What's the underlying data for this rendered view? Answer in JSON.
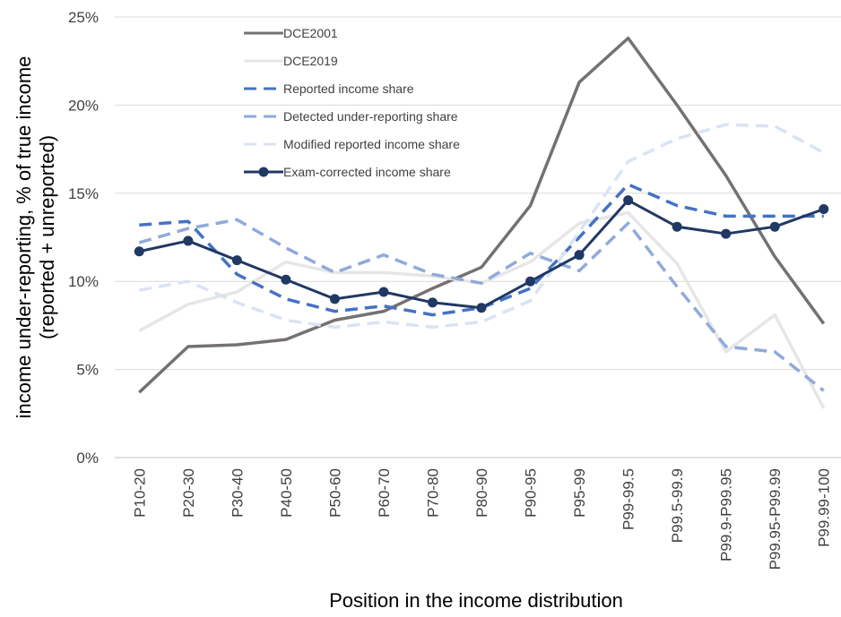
{
  "chart_data": {
    "type": "line",
    "y_label": "income under-reporting, % of true income (reported + unreported)",
    "x_label": "Position in the income distribution",
    "categories": [
      "P10-20",
      "P20-30",
      "P30-40",
      "P40-50",
      "P50-60",
      "P60-70",
      "P70-80",
      "P80-90",
      "P90-95",
      "P95-99",
      "P99-99.5",
      "P99.5-99.9",
      "P99.9-P99.95",
      "P99.95-P99.99",
      "P99.99-100"
    ],
    "series": [
      {
        "name": "DCE2001",
        "color": "#767171",
        "dashed": false,
        "marker": false,
        "values": [
          3.7,
          6.3,
          6.4,
          6.7,
          7.8,
          8.3,
          9.6,
          10.8,
          14.3,
          21.3,
          23.8,
          20.0,
          16.0,
          11.4,
          7.6
        ]
      },
      {
        "name": "DCE2019",
        "color": "#e7e6e6",
        "dashed": false,
        "marker": false,
        "values": [
          7.2,
          8.7,
          9.4,
          11.1,
          10.5,
          10.5,
          10.3,
          9.9,
          11.1,
          13.3,
          13.9,
          11.0,
          6.0,
          8.1,
          2.8
        ]
      },
      {
        "name": "Reported income share",
        "color": "#4472c4",
        "dashed": true,
        "marker": false,
        "values": [
          13.2,
          13.4,
          10.4,
          9.0,
          8.3,
          8.6,
          8.1,
          8.5,
          9.6,
          12.5,
          15.5,
          14.3,
          13.7,
          13.7,
          13.7
        ]
      },
      {
        "name": "Detected under-reporting share",
        "color": "#8faadc",
        "dashed": true,
        "marker": false,
        "values": [
          12.2,
          13.0,
          13.5,
          11.9,
          10.5,
          11.5,
          10.4,
          9.9,
          11.6,
          10.6,
          13.3,
          9.7,
          6.3,
          6.0,
          3.8
        ]
      },
      {
        "name": "Modified reported income share",
        "color": "#dae3f3",
        "dashed": true,
        "marker": false,
        "values": [
          9.5,
          10.0,
          8.8,
          7.8,
          7.4,
          7.7,
          7.4,
          7.7,
          8.9,
          12.8,
          16.8,
          18.1,
          18.9,
          18.8,
          17.3
        ]
      },
      {
        "name": "Exam-corrected income share",
        "color": "#203864",
        "dashed": false,
        "marker": true,
        "values": [
          11.7,
          12.3,
          11.2,
          10.1,
          9.0,
          9.4,
          8.8,
          8.5,
          10.0,
          11.5,
          14.6,
          13.1,
          12.7,
          13.1,
          14.1
        ]
      }
    ],
    "ylim": [
      0,
      25
    ],
    "yticks": [
      {
        "value": 0,
        "label": "0%"
      },
      {
        "value": 5,
        "label": "5%"
      },
      {
        "value": 10,
        "label": "10%"
      },
      {
        "value": 15,
        "label": "15%"
      },
      {
        "value": 20,
        "label": "20%"
      },
      {
        "value": 25,
        "label": "25%"
      }
    ]
  }
}
